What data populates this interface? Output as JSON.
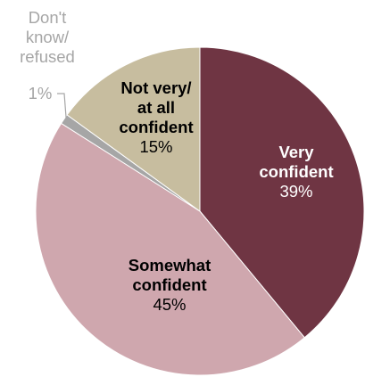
{
  "chart_data": {
    "type": "pie",
    "start_angle_deg": 0,
    "direction": "clockwise",
    "slices": [
      {
        "label_lines": [
          "Very",
          "confident"
        ],
        "value": 39,
        "value_label": "39%",
        "color": "#6f3543",
        "text_color": "#ffffff"
      },
      {
        "label_lines": [
          "Somewhat",
          "confident"
        ],
        "value": 45,
        "value_label": "45%",
        "color": "#cfa7ae",
        "text_color": "#000000"
      },
      {
        "label_lines": [
          "Don't",
          "know/",
          "refused"
        ],
        "value": 1,
        "value_label": "1%",
        "color": "#a6a6a6",
        "text_color": "#a6a6a6"
      },
      {
        "label_lines": [
          "Not very/",
          "at all",
          "confident"
        ],
        "value": 15,
        "value_label": "15%",
        "color": "#c7bd9f",
        "text_color": "#000000"
      }
    ]
  }
}
